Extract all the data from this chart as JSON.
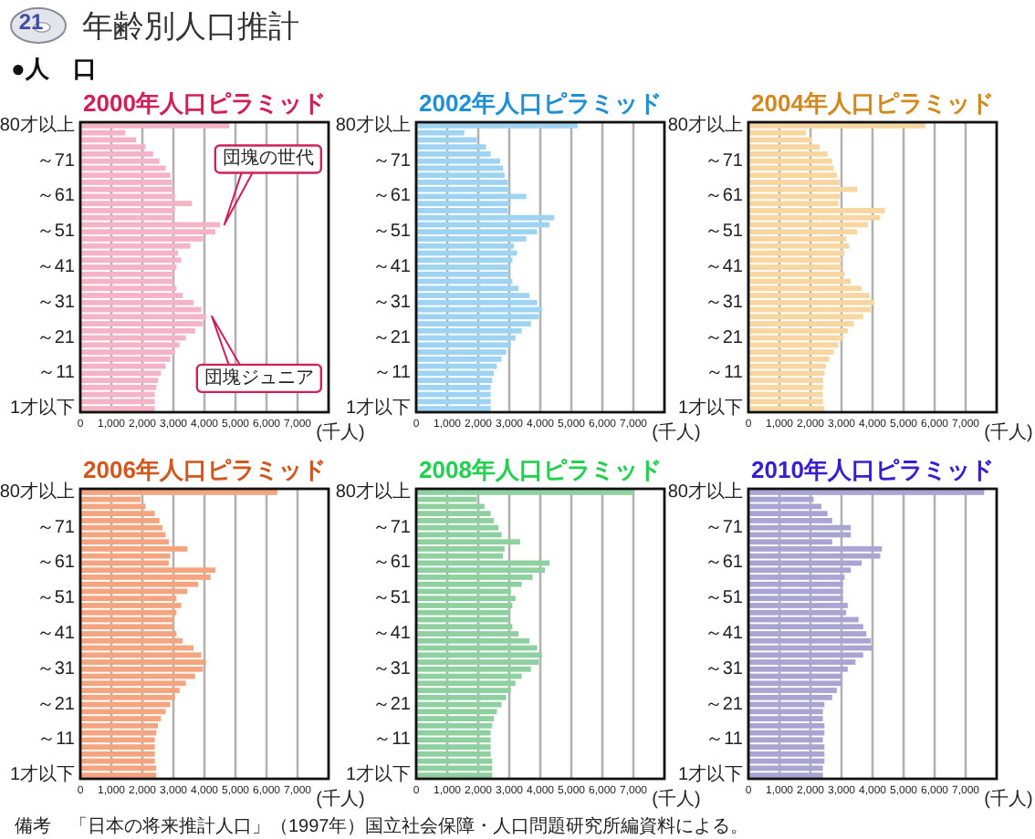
{
  "chart_data": [
    {
      "type": "other",
      "title": "年齢別人口推計",
      "subtitle": "●人　口",
      "annotations": [
        "21",
        "備考　「日本の将来推計人口」（1997年）国立社会保障・人口問題研究所編資料による。"
      ]
    },
    {
      "type": "bar",
      "orientation": "horizontal",
      "title": "2000年人口ピラミッド",
      "xlabel": "(千人)",
      "categories": [
        "80才以上",
        null,
        null,
        null,
        null,
        "～71",
        null,
        null,
        null,
        null,
        "～61",
        null,
        null,
        null,
        null,
        "～51",
        null,
        null,
        null,
        null,
        "～41",
        null,
        null,
        null,
        null,
        "～31",
        null,
        null,
        null,
        null,
        "～21",
        null,
        null,
        null,
        null,
        "～11",
        null,
        null,
        null,
        null,
        "1才以下"
      ],
      "values": [
        4800,
        1450,
        1800,
        2100,
        2350,
        2550,
        2750,
        2900,
        2950,
        3000,
        3050,
        3600,
        3050,
        3000,
        4500,
        4350,
        3950,
        3550,
        3150,
        3250,
        3100,
        3000,
        3000,
        3100,
        3300,
        3650,
        3900,
        4050,
        3950,
        3700,
        3400,
        3200,
        3050,
        2900,
        2750,
        2600,
        2500,
        2450,
        2400,
        2400,
        2400
      ],
      "color": "#f5b3c8",
      "xlim": [
        0,
        8000
      ],
      "xticks": [
        {
          "value": 0,
          "label": "0"
        },
        {
          "value": 1000,
          "label": "1,000"
        },
        {
          "value": 2000,
          "label": "2,000"
        },
        {
          "value": 3000,
          "label": "3,000"
        },
        {
          "value": 4000,
          "label": "4,000"
        },
        {
          "value": 5000,
          "label": "5,000"
        },
        {
          "value": 6000,
          "label": "6,000"
        },
        {
          "value": 7000,
          "label": "7,000"
        }
      ],
      "grid": "x",
      "annotations": [
        "団塊の世代",
        "団塊ジュニア"
      ]
    },
    {
      "type": "bar",
      "orientation": "horizontal",
      "title": "2002年人口ピラミッド",
      "xlabel": "(千人)",
      "categories": [
        "80才以上",
        null,
        null,
        null,
        null,
        "～71",
        null,
        null,
        null,
        null,
        "～61",
        null,
        null,
        null,
        null,
        "～51",
        null,
        null,
        null,
        null,
        "～41",
        null,
        null,
        null,
        null,
        "～31",
        null,
        null,
        null,
        null,
        "～21",
        null,
        null,
        null,
        null,
        "～11",
        null,
        null,
        null,
        null,
        "1才以下"
      ],
      "values": [
        5200,
        1550,
        1950,
        2250,
        2400,
        2700,
        2800,
        2850,
        2950,
        3000,
        3550,
        3000,
        2950,
        4450,
        4300,
        3900,
        3550,
        3150,
        3250,
        3100,
        3000,
        3000,
        3100,
        3300,
        3650,
        3900,
        4050,
        3950,
        3700,
        3400,
        3200,
        3050,
        2900,
        2750,
        2600,
        2500,
        2450,
        2400,
        2400,
        2400,
        2400
      ],
      "color": "#9fd3f2",
      "xlim": [
        0,
        8000
      ],
      "xticks": [
        {
          "value": 0,
          "label": "0"
        },
        {
          "value": 1000,
          "label": "1,000"
        },
        {
          "value": 2000,
          "label": "2,000"
        },
        {
          "value": 3000,
          "label": "3,000"
        },
        {
          "value": 4000,
          "label": "4,000"
        },
        {
          "value": 5000,
          "label": "5,000"
        },
        {
          "value": 6000,
          "label": "6,000"
        },
        {
          "value": 7000,
          "label": "7,000"
        }
      ],
      "grid": "x"
    },
    {
      "type": "bar",
      "orientation": "horizontal",
      "title": "2004年人口ピラミッド",
      "xlabel": "(千人)",
      "categories": [
        "80才以上",
        null,
        null,
        null,
        null,
        "～71",
        null,
        null,
        null,
        null,
        "～61",
        null,
        null,
        null,
        null,
        "～51",
        null,
        null,
        null,
        null,
        "～41",
        null,
        null,
        null,
        null,
        "～31",
        null,
        null,
        null,
        null,
        "～21",
        null,
        null,
        null,
        null,
        "～11",
        null,
        null,
        null,
        null,
        "1才以下"
      ],
      "values": [
        5700,
        1850,
        2050,
        2300,
        2550,
        2700,
        2750,
        2850,
        2950,
        3500,
        2950,
        2900,
        4400,
        4250,
        3850,
        3500,
        3150,
        3250,
        3100,
        3000,
        3000,
        3100,
        3300,
        3650,
        3900,
        4050,
        3950,
        3700,
        3400,
        3200,
        3050,
        2900,
        2750,
        2600,
        2500,
        2450,
        2400,
        2400,
        2400,
        2400,
        2450
      ],
      "color": "#f8d6a2",
      "xlim": [
        0,
        8000
      ],
      "xticks": [
        {
          "value": 0,
          "label": "0"
        },
        {
          "value": 1000,
          "label": "1,000"
        },
        {
          "value": 2000,
          "label": "2,000"
        },
        {
          "value": 3000,
          "label": "3,000"
        },
        {
          "value": 4000,
          "label": "4,000"
        },
        {
          "value": 5000,
          "label": "5,000"
        },
        {
          "value": 6000,
          "label": "6,000"
        },
        {
          "value": 7000,
          "label": "7,000"
        }
      ],
      "grid": "x"
    },
    {
      "type": "bar",
      "orientation": "horizontal",
      "title": "2006年人口ピラミッド",
      "xlabel": "(千人)",
      "categories": [
        "80才以上",
        null,
        null,
        null,
        null,
        "～71",
        null,
        null,
        null,
        null,
        "～61",
        null,
        null,
        null,
        null,
        "～51",
        null,
        null,
        null,
        null,
        "～41",
        null,
        null,
        null,
        null,
        "～31",
        null,
        null,
        null,
        null,
        "～21",
        null,
        null,
        null,
        null,
        "～11",
        null,
        null,
        null,
        null,
        "1才以下"
      ],
      "values": [
        6350,
        1950,
        2100,
        2400,
        2550,
        2650,
        2750,
        2850,
        3450,
        2900,
        2850,
        4350,
        4200,
        3800,
        3450,
        3100,
        3250,
        3100,
        3000,
        3000,
        3100,
        3300,
        3650,
        3900,
        4050,
        3950,
        3700,
        3400,
        3200,
        3050,
        2900,
        2750,
        2600,
        2500,
        2450,
        2400,
        2400,
        2400,
        2400,
        2450,
        2450
      ],
      "color": "#f4a57f",
      "xlim": [
        0,
        8000
      ],
      "xticks": [
        {
          "value": 0,
          "label": "0"
        },
        {
          "value": 1000,
          "label": "1,000"
        },
        {
          "value": 2000,
          "label": "2,000"
        },
        {
          "value": 3000,
          "label": "3,000"
        },
        {
          "value": 4000,
          "label": "4,000"
        },
        {
          "value": 5000,
          "label": "5,000"
        },
        {
          "value": 6000,
          "label": "6,000"
        },
        {
          "value": 7000,
          "label": "7,000"
        }
      ],
      "grid": "x"
    },
    {
      "type": "bar",
      "orientation": "horizontal",
      "title": "2008年人口ピラミッド",
      "xlabel": "(千人)",
      "categories": [
        "80才以上",
        null,
        null,
        null,
        null,
        "～71",
        null,
        null,
        null,
        null,
        "～61",
        null,
        null,
        null,
        null,
        "～51",
        null,
        null,
        null,
        null,
        "～41",
        null,
        null,
        null,
        null,
        "～31",
        null,
        null,
        null,
        null,
        "～21",
        null,
        null,
        null,
        null,
        "～11",
        null,
        null,
        null,
        null,
        "1才以下"
      ],
      "values": [
        7000,
        1950,
        2200,
        2400,
        2500,
        2650,
        2750,
        3350,
        2850,
        2800,
        4300,
        4150,
        3750,
        3400,
        3050,
        3200,
        3100,
        3000,
        3000,
        3100,
        3300,
        3650,
        3900,
        4050,
        3950,
        3700,
        3400,
        3200,
        3050,
        2900,
        2750,
        2600,
        2500,
        2450,
        2400,
        2400,
        2400,
        2400,
        2450,
        2450,
        2450
      ],
      "color": "#8fd0a0",
      "xlim": [
        0,
        8000
      ],
      "xticks": [
        {
          "value": 0,
          "label": "0"
        },
        {
          "value": 1000,
          "label": "1,000"
        },
        {
          "value": 2000,
          "label": "2,000"
        },
        {
          "value": 3000,
          "label": "3,000"
        },
        {
          "value": 4000,
          "label": "4,000"
        },
        {
          "value": 5000,
          "label": "5,000"
        },
        {
          "value": 6000,
          "label": "6,000"
        },
        {
          "value": 7000,
          "label": "7,000"
        }
      ],
      "grid": "x"
    },
    {
      "type": "bar",
      "orientation": "horizontal",
      "title": "2010年人口ピラミッド",
      "xlabel": "(千人)",
      "categories": [
        "80才以上",
        null,
        null,
        null,
        null,
        "～71",
        null,
        null,
        null,
        null,
        "～61",
        null,
        null,
        null,
        null,
        "～51",
        null,
        null,
        null,
        null,
        "～41",
        null,
        null,
        null,
        null,
        "～31",
        null,
        null,
        null,
        null,
        "～21",
        null,
        null,
        null,
        null,
        "～11",
        null,
        null,
        null,
        null,
        "1才以下"
      ],
      "values": [
        7600,
        2100,
        2350,
        2550,
        2700,
        3300,
        3300,
        2700,
        4300,
        4250,
        3650,
        3300,
        3100,
        3050,
        3050,
        3050,
        3200,
        3150,
        3550,
        3700,
        3800,
        3950,
        4000,
        3700,
        3450,
        3200,
        3000,
        3000,
        2850,
        2700,
        2450,
        2400,
        2400,
        2450,
        2450,
        2400,
        2450,
        2450,
        2450,
        2400,
        2400
      ],
      "color": "#aaa4d2",
      "xlim": [
        0,
        8000
      ],
      "xticks": [
        {
          "value": 0,
          "label": "0"
        },
        {
          "value": 1000,
          "label": "1,000"
        },
        {
          "value": 2000,
          "label": "2,000"
        },
        {
          "value": 3000,
          "label": "3,000"
        },
        {
          "value": 4000,
          "label": "4,000"
        },
        {
          "value": 5000,
          "label": "5,000"
        },
        {
          "value": 6000,
          "label": "6,000"
        },
        {
          "value": 7000,
          "label": "7,000"
        }
      ],
      "grid": "x"
    }
  ]
}
